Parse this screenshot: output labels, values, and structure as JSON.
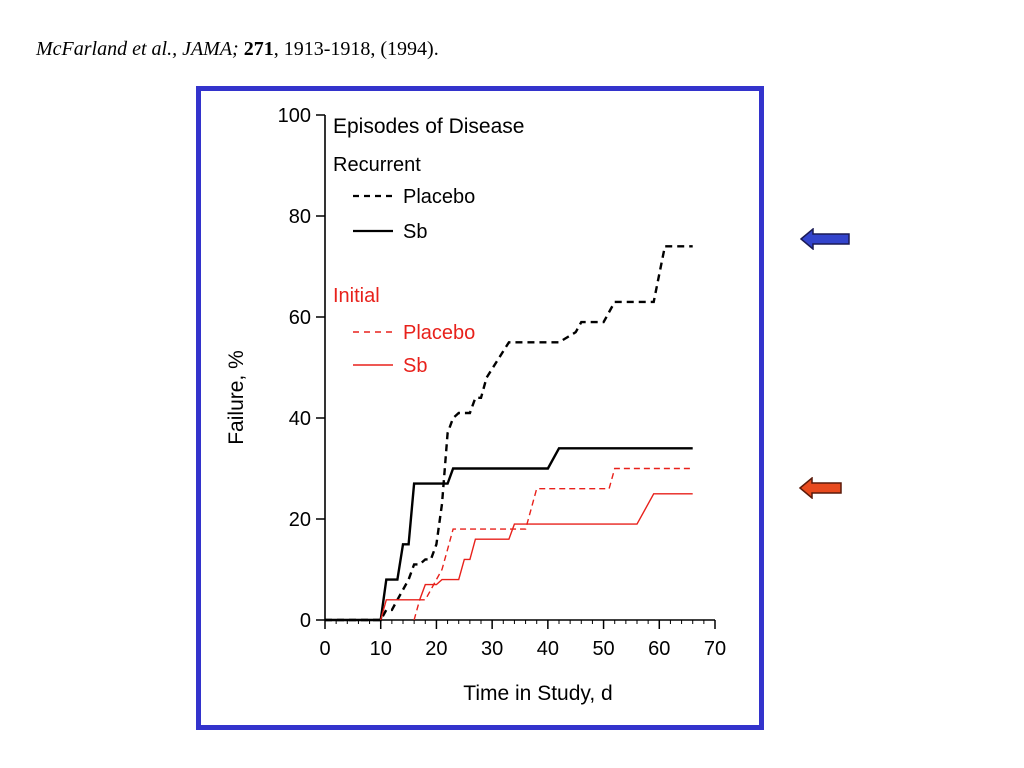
{
  "citation": {
    "authors": "McFarland et al., JAMA;",
    "volume": "271",
    "rest": ", 1913-1918, (1994)."
  },
  "colors": {
    "frame": "#3333cc",
    "recurrent": "#000000",
    "initial": "#e8211b",
    "blue_arrow": "#3344cc",
    "red_arrow": "#e84a1e"
  },
  "chart_data": {
    "type": "line",
    "title": "Episodes of Disease",
    "xlabel": "Time in Study, d",
    "ylabel": "Failure, %",
    "xlim": [
      0,
      70
    ],
    "ylim": [
      0,
      100
    ],
    "xticks": [
      "0",
      "10",
      "20",
      "30",
      "40",
      "50",
      "60",
      "70"
    ],
    "yticks": [
      "0",
      "20",
      "40",
      "60",
      "80",
      "100"
    ],
    "legend": [
      {
        "group": "Recurrent",
        "entries": [
          "Placebo",
          "Sb"
        ]
      },
      {
        "group": "Initial",
        "entries": [
          "Placebo",
          "Sb"
        ]
      }
    ],
    "series": [
      {
        "group": "Recurrent",
        "name": "Placebo",
        "style": "dashed",
        "color": "black",
        "x": [
          0,
          10,
          11,
          12,
          13,
          14,
          15,
          16,
          17,
          18,
          19,
          20,
          21,
          22,
          23,
          24,
          26,
          27,
          28,
          29,
          33,
          35,
          37,
          42,
          45,
          46,
          50,
          52,
          55,
          59,
          61,
          66
        ],
        "y": [
          0,
          0,
          2,
          2,
          4,
          6,
          8,
          11,
          11,
          12,
          12,
          15,
          23,
          37,
          40,
          41,
          41,
          44,
          44,
          48,
          55,
          55,
          55,
          55,
          57,
          59,
          59,
          63,
          63,
          63,
          74,
          74
        ]
      },
      {
        "group": "Recurrent",
        "name": "Sb",
        "style": "solid",
        "color": "black",
        "x": [
          0,
          10,
          11,
          13,
          14,
          15,
          16,
          19,
          20,
          22,
          23,
          40,
          42,
          66
        ],
        "y": [
          0,
          0,
          8,
          8,
          15,
          15,
          27,
          27,
          27,
          27,
          30,
          30,
          34,
          34
        ]
      },
      {
        "group": "Initial",
        "name": "Placebo",
        "style": "dashed",
        "color": "red",
        "x": [
          16,
          17,
          18,
          19,
          20,
          21,
          22,
          23,
          26,
          31,
          36,
          38,
          45,
          51,
          52,
          66
        ],
        "y": [
          0,
          4,
          4,
          6,
          8,
          10,
          14,
          18,
          18,
          18,
          18,
          26,
          26,
          26,
          30,
          30
        ]
      },
      {
        "group": "Initial",
        "name": "Sb",
        "style": "solid",
        "color": "red",
        "x": [
          10,
          11,
          17,
          18,
          20,
          21,
          22,
          23,
          24,
          25,
          26,
          27,
          29,
          31,
          33,
          34,
          36,
          56,
          59,
          66
        ],
        "y": [
          0,
          4,
          4,
          7,
          7,
          8,
          8,
          8,
          8,
          12,
          12,
          16,
          16,
          16,
          16,
          19,
          19,
          19,
          25,
          25
        ]
      }
    ],
    "annotations": [
      {
        "target": "Recurrent",
        "marker": "blue-arrow"
      },
      {
        "target": "Initial",
        "marker": "red-arrow"
      }
    ]
  }
}
